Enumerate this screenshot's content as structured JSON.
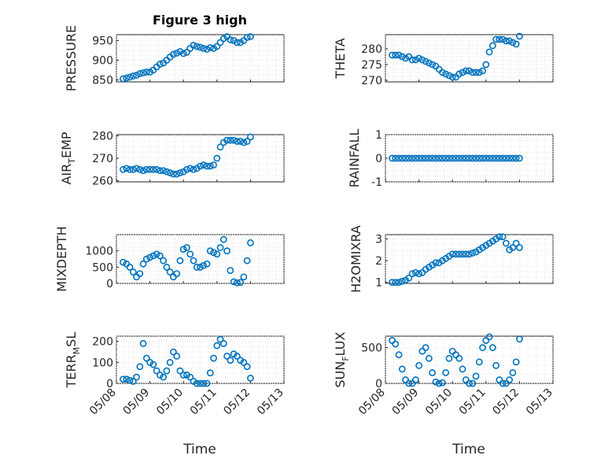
{
  "accent_color": "#0072bd",
  "chart_data": [
    {
      "type": "scatter",
      "id": "pressure",
      "title": "Figure 3 high",
      "ylabel": "PRESSURE",
      "xlabel": "",
      "x_day_range": [
        8,
        13
      ],
      "ylim": [
        845,
        965
      ],
      "yticks": [
        850,
        900,
        950
      ],
      "x_tick_labels": [],
      "grid": true,
      "points": [
        [
          8.2,
          853
        ],
        [
          8.3,
          855
        ],
        [
          8.4,
          857
        ],
        [
          8.5,
          860
        ],
        [
          8.6,
          862
        ],
        [
          8.7,
          866
        ],
        [
          8.8,
          868
        ],
        [
          8.9,
          870
        ],
        [
          9.0,
          870
        ],
        [
          9.1,
          875
        ],
        [
          9.2,
          883
        ],
        [
          9.3,
          890
        ],
        [
          9.4,
          893
        ],
        [
          9.5,
          900
        ],
        [
          9.6,
          908
        ],
        [
          9.7,
          915
        ],
        [
          9.8,
          918
        ],
        [
          9.9,
          922
        ],
        [
          10.0,
          917
        ],
        [
          10.1,
          920
        ],
        [
          10.2,
          930
        ],
        [
          10.3,
          938
        ],
        [
          10.4,
          935
        ],
        [
          10.5,
          933
        ],
        [
          10.6,
          930
        ],
        [
          10.7,
          928
        ],
        [
          10.8,
          932
        ],
        [
          10.9,
          930
        ],
        [
          11.0,
          935
        ],
        [
          11.1,
          945
        ],
        [
          11.2,
          955
        ],
        [
          11.3,
          960
        ],
        [
          11.4,
          952
        ],
        [
          11.5,
          950
        ],
        [
          11.6,
          945
        ],
        [
          11.7,
          945
        ],
        [
          11.8,
          950
        ],
        [
          11.9,
          958
        ],
        [
          12.0,
          960
        ]
      ]
    },
    {
      "type": "scatter",
      "id": "theta",
      "title": "",
      "ylabel": "THETA",
      "xlabel": "",
      "x_day_range": [
        8,
        13
      ],
      "ylim": [
        269.5,
        284.5
      ],
      "yticks": [
        270,
        275,
        280
      ],
      "x_tick_labels": [],
      "grid": true,
      "points": [
        [
          8.2,
          278
        ],
        [
          8.3,
          278
        ],
        [
          8.4,
          278
        ],
        [
          8.5,
          277.5
        ],
        [
          8.6,
          277
        ],
        [
          8.7,
          277.5
        ],
        [
          8.8,
          276.5
        ],
        [
          8.9,
          276.5
        ],
        [
          9.0,
          277
        ],
        [
          9.1,
          276.5
        ],
        [
          9.2,
          276
        ],
        [
          9.3,
          275.5
        ],
        [
          9.4,
          275
        ],
        [
          9.5,
          274.5
        ],
        [
          9.6,
          273.5
        ],
        [
          9.7,
          272.5
        ],
        [
          9.8,
          272
        ],
        [
          9.9,
          271.5
        ],
        [
          10.0,
          271
        ],
        [
          10.1,
          271
        ],
        [
          10.2,
          272
        ],
        [
          10.3,
          272.5
        ],
        [
          10.4,
          273
        ],
        [
          10.5,
          273
        ],
        [
          10.6,
          272.5
        ],
        [
          10.7,
          272.5
        ],
        [
          10.8,
          272.5
        ],
        [
          10.9,
          273
        ],
        [
          11.0,
          275
        ],
        [
          11.1,
          279
        ],
        [
          11.2,
          281
        ],
        [
          11.3,
          283
        ],
        [
          11.4,
          283
        ],
        [
          11.5,
          283
        ],
        [
          11.6,
          282.5
        ],
        [
          11.7,
          282.5
        ],
        [
          11.8,
          282
        ],
        [
          11.9,
          281.5
        ],
        [
          12.0,
          284
        ]
      ]
    },
    {
      "type": "scatter",
      "id": "air-temp",
      "title": "",
      "ylabel": "AIR_TEMP",
      "xlabel": "",
      "x_day_range": [
        8,
        13
      ],
      "ylim": [
        259.5,
        280.5
      ],
      "yticks": [
        260,
        270,
        280
      ],
      "x_tick_labels": [],
      "grid": true,
      "points": [
        [
          8.2,
          265
        ],
        [
          8.3,
          265.5
        ],
        [
          8.4,
          265
        ],
        [
          8.5,
          265
        ],
        [
          8.6,
          265.5
        ],
        [
          8.7,
          265
        ],
        [
          8.8,
          264.5
        ],
        [
          8.9,
          265
        ],
        [
          9.0,
          265
        ],
        [
          9.1,
          265
        ],
        [
          9.2,
          265
        ],
        [
          9.3,
          264.5
        ],
        [
          9.4,
          264.5
        ],
        [
          9.5,
          264
        ],
        [
          9.6,
          263.5
        ],
        [
          9.7,
          263
        ],
        [
          9.8,
          263
        ],
        [
          9.9,
          263.5
        ],
        [
          10.0,
          264
        ],
        [
          10.1,
          265
        ],
        [
          10.2,
          265.5
        ],
        [
          10.3,
          265
        ],
        [
          10.4,
          265.5
        ],
        [
          10.5,
          266.5
        ],
        [
          10.6,
          267
        ],
        [
          10.7,
          266.5
        ],
        [
          10.8,
          266.5
        ],
        [
          10.9,
          267
        ],
        [
          11.0,
          270
        ],
        [
          11.1,
          275
        ],
        [
          11.2,
          277
        ],
        [
          11.3,
          278
        ],
        [
          11.4,
          278
        ],
        [
          11.5,
          278
        ],
        [
          11.6,
          277.5
        ],
        [
          11.7,
          277.5
        ],
        [
          11.8,
          277
        ],
        [
          11.9,
          277.5
        ],
        [
          12.0,
          279.5
        ]
      ]
    },
    {
      "type": "scatter",
      "id": "rainfall",
      "title": "",
      "ylabel": "RAINFALL",
      "xlabel": "",
      "x_day_range": [
        8,
        13
      ],
      "ylim": [
        -1,
        1
      ],
      "yticks": [
        -1,
        0,
        1
      ],
      "x_tick_labels": [],
      "grid": true,
      "points": [
        [
          8.2,
          0
        ],
        [
          8.3,
          0
        ],
        [
          8.4,
          0
        ],
        [
          8.5,
          0
        ],
        [
          8.6,
          0
        ],
        [
          8.7,
          0
        ],
        [
          8.8,
          0
        ],
        [
          8.9,
          0
        ],
        [
          9.0,
          0
        ],
        [
          9.1,
          0
        ],
        [
          9.2,
          0
        ],
        [
          9.3,
          0
        ],
        [
          9.4,
          0
        ],
        [
          9.5,
          0
        ],
        [
          9.6,
          0
        ],
        [
          9.7,
          0
        ],
        [
          9.8,
          0
        ],
        [
          9.9,
          0
        ],
        [
          10.0,
          0
        ],
        [
          10.1,
          0
        ],
        [
          10.2,
          0
        ],
        [
          10.3,
          0
        ],
        [
          10.4,
          0
        ],
        [
          10.5,
          0
        ],
        [
          10.6,
          0
        ],
        [
          10.7,
          0
        ],
        [
          10.8,
          0
        ],
        [
          10.9,
          0
        ],
        [
          11.0,
          0
        ],
        [
          11.1,
          0
        ],
        [
          11.2,
          0
        ],
        [
          11.3,
          0
        ],
        [
          11.4,
          0
        ],
        [
          11.5,
          0
        ],
        [
          11.6,
          0
        ],
        [
          11.7,
          0
        ],
        [
          11.8,
          0
        ],
        [
          11.9,
          0
        ],
        [
          12.0,
          0
        ]
      ]
    },
    {
      "type": "scatter",
      "id": "mixdepth",
      "title": "",
      "ylabel": "MIXDEPTH",
      "xlabel": "",
      "x_day_range": [
        8,
        13
      ],
      "ylim": [
        0,
        1500
      ],
      "yticks": [
        0,
        500,
        1000
      ],
      "x_tick_labels": [],
      "grid": true,
      "points": [
        [
          8.2,
          650
        ],
        [
          8.3,
          600
        ],
        [
          8.4,
          500
        ],
        [
          8.5,
          350
        ],
        [
          8.6,
          200
        ],
        [
          8.7,
          300
        ],
        [
          8.8,
          600
        ],
        [
          8.9,
          750
        ],
        [
          9.0,
          800
        ],
        [
          9.1,
          850
        ],
        [
          9.2,
          900
        ],
        [
          9.3,
          850
        ],
        [
          9.4,
          700
        ],
        [
          9.5,
          500
        ],
        [
          9.6,
          350
        ],
        [
          9.7,
          200
        ],
        [
          9.8,
          300
        ],
        [
          9.9,
          700
        ],
        [
          10.0,
          1050
        ],
        [
          10.1,
          1100
        ],
        [
          10.2,
          900
        ],
        [
          10.3,
          700
        ],
        [
          10.4,
          500
        ],
        [
          10.5,
          500
        ],
        [
          10.6,
          550
        ],
        [
          10.7,
          600
        ],
        [
          10.8,
          1000
        ],
        [
          10.9,
          950
        ],
        [
          11.0,
          900
        ],
        [
          11.1,
          1100
        ],
        [
          11.2,
          1350
        ],
        [
          11.3,
          1000
        ],
        [
          11.4,
          400
        ],
        [
          11.5,
          50
        ],
        [
          11.6,
          20
        ],
        [
          11.7,
          30
        ],
        [
          11.8,
          200
        ],
        [
          11.9,
          700
        ],
        [
          12.0,
          1250
        ]
      ]
    },
    {
      "type": "scatter",
      "id": "h2omixra",
      "title": "",
      "ylabel": "H2OMIXRA",
      "xlabel": "",
      "x_day_range": [
        8,
        13
      ],
      "ylim": [
        0.95,
        3.2
      ],
      "yticks": [
        1,
        2,
        3
      ],
      "x_tick_labels": [],
      "grid": true,
      "points": [
        [
          8.2,
          1.0
        ],
        [
          8.3,
          1.0
        ],
        [
          8.4,
          1.0
        ],
        [
          8.5,
          1.05
        ],
        [
          8.6,
          1.1
        ],
        [
          8.7,
          1.2
        ],
        [
          8.8,
          1.4
        ],
        [
          8.9,
          1.45
        ],
        [
          9.0,
          1.4
        ],
        [
          9.1,
          1.45
        ],
        [
          9.2,
          1.6
        ],
        [
          9.3,
          1.7
        ],
        [
          9.4,
          1.8
        ],
        [
          9.5,
          1.9
        ],
        [
          9.6,
          1.9
        ],
        [
          9.7,
          2.0
        ],
        [
          9.8,
          2.1
        ],
        [
          9.9,
          2.2
        ],
        [
          10.0,
          2.3
        ],
        [
          10.1,
          2.3
        ],
        [
          10.2,
          2.3
        ],
        [
          10.3,
          2.3
        ],
        [
          10.4,
          2.3
        ],
        [
          10.5,
          2.3
        ],
        [
          10.6,
          2.35
        ],
        [
          10.7,
          2.4
        ],
        [
          10.8,
          2.5
        ],
        [
          10.9,
          2.6
        ],
        [
          11.0,
          2.7
        ],
        [
          11.1,
          2.8
        ],
        [
          11.2,
          2.9
        ],
        [
          11.3,
          3.0
        ],
        [
          11.4,
          3.1
        ],
        [
          11.5,
          3.1
        ],
        [
          11.6,
          2.8
        ],
        [
          11.7,
          2.5
        ],
        [
          11.8,
          2.6
        ],
        [
          11.9,
          2.8
        ],
        [
          12.0,
          2.6
        ]
      ]
    },
    {
      "type": "scatter",
      "id": "terr-msl",
      "title": "",
      "ylabel": "TERR_MSL",
      "xlabel": "Time",
      "x_day_range": [
        8,
        13
      ],
      "ylim": [
        0,
        225
      ],
      "yticks": [
        0,
        100,
        200
      ],
      "x_tick_labels": [
        "05/08",
        "05/09",
        "05/10",
        "05/11",
        "05/12",
        "05/13"
      ],
      "grid": true,
      "points": [
        [
          8.2,
          20
        ],
        [
          8.3,
          20
        ],
        [
          8.4,
          15
        ],
        [
          8.5,
          10
        ],
        [
          8.6,
          30
        ],
        [
          8.7,
          80
        ],
        [
          8.8,
          190
        ],
        [
          8.9,
          120
        ],
        [
          9.0,
          100
        ],
        [
          9.1,
          90
        ],
        [
          9.2,
          60
        ],
        [
          9.3,
          40
        ],
        [
          9.4,
          30
        ],
        [
          9.5,
          60
        ],
        [
          9.6,
          100
        ],
        [
          9.7,
          150
        ],
        [
          9.8,
          130
        ],
        [
          9.9,
          60
        ],
        [
          10.0,
          40
        ],
        [
          10.1,
          40
        ],
        [
          10.2,
          30
        ],
        [
          10.3,
          10
        ],
        [
          10.4,
          0
        ],
        [
          10.5,
          0
        ],
        [
          10.6,
          0
        ],
        [
          10.7,
          0
        ],
        [
          10.8,
          50
        ],
        [
          10.9,
          120
        ],
        [
          11.0,
          180
        ],
        [
          11.1,
          210
        ],
        [
          11.2,
          190
        ],
        [
          11.3,
          130
        ],
        [
          11.4,
          110
        ],
        [
          11.5,
          140
        ],
        [
          11.6,
          130
        ],
        [
          11.7,
          110
        ],
        [
          11.8,
          100
        ],
        [
          11.9,
          80
        ],
        [
          12.0,
          25
        ]
      ]
    },
    {
      "type": "scatter",
      "id": "sun-flux",
      "title": "",
      "ylabel": "SUN_FLUX",
      "xlabel": "Time",
      "x_day_range": [
        8,
        13
      ],
      "ylim": [
        0,
        660
      ],
      "yticks": [
        0,
        500
      ],
      "x_tick_labels": [
        "05/08",
        "05/09",
        "05/10",
        "05/11",
        "05/12",
        "05/13"
      ],
      "grid": true,
      "points": [
        [
          8.2,
          600
        ],
        [
          8.3,
          550
        ],
        [
          8.4,
          400
        ],
        [
          8.5,
          200
        ],
        [
          8.6,
          50
        ],
        [
          8.7,
          0
        ],
        [
          8.8,
          0
        ],
        [
          8.9,
          50
        ],
        [
          9.0,
          250
        ],
        [
          9.1,
          450
        ],
        [
          9.2,
          500
        ],
        [
          9.3,
          350
        ],
        [
          9.4,
          150
        ],
        [
          9.5,
          20
        ],
        [
          9.6,
          0
        ],
        [
          9.7,
          10
        ],
        [
          9.8,
          150
        ],
        [
          9.9,
          350
        ],
        [
          10.0,
          450
        ],
        [
          10.1,
          400
        ],
        [
          10.2,
          350
        ],
        [
          10.3,
          200
        ],
        [
          10.4,
          50
        ],
        [
          10.5,
          0
        ],
        [
          10.6,
          0
        ],
        [
          10.7,
          100
        ],
        [
          10.8,
          300
        ],
        [
          10.9,
          500
        ],
        [
          11.0,
          600
        ],
        [
          11.1,
          650
        ],
        [
          11.2,
          500
        ],
        [
          11.3,
          250
        ],
        [
          11.4,
          50
        ],
        [
          11.5,
          0
        ],
        [
          11.6,
          0
        ],
        [
          11.7,
          50
        ],
        [
          11.8,
          150
        ],
        [
          11.9,
          300
        ],
        [
          12.0,
          620
        ]
      ]
    }
  ]
}
